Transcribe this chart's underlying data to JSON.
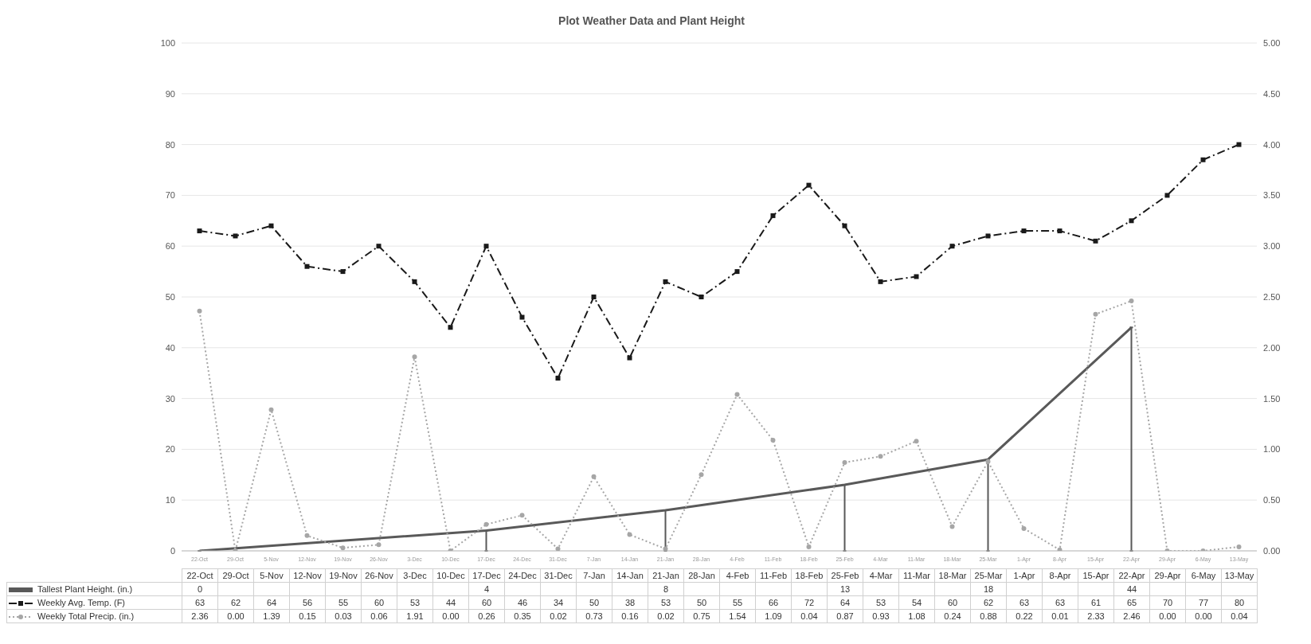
{
  "chart_data": {
    "type": "line",
    "title": "Plot Weather Data and Plant Height",
    "categories": [
      "22-Oct",
      "29-Oct",
      "5-Nov",
      "12-Nov",
      "19-Nov",
      "26-Nov",
      "3-Dec",
      "10-Dec",
      "17-Dec",
      "24-Dec",
      "31-Dec",
      "7-Jan",
      "14-Jan",
      "21-Jan",
      "28-Jan",
      "4-Feb",
      "11-Feb",
      "18-Feb",
      "25-Feb",
      "4-Mar",
      "11-Mar",
      "18-Mar",
      "25-Mar",
      "1-Apr",
      "8-Apr",
      "15-Apr",
      "22-Apr",
      "29-Apr",
      "6-May",
      "13-May"
    ],
    "series": [
      {
        "name": "Tallest Plant Height. (in.)",
        "color": "#595959",
        "line_style": "solid",
        "marker": "none",
        "values": [
          0,
          null,
          null,
          null,
          null,
          null,
          null,
          null,
          4,
          null,
          null,
          null,
          null,
          8,
          null,
          null,
          null,
          null,
          13,
          null,
          null,
          null,
          18,
          null,
          null,
          null,
          44,
          null,
          null,
          null
        ],
        "errors": [
          null,
          null,
          null,
          null,
          null,
          null,
          null,
          null,
          [
            0,
            4
          ],
          null,
          null,
          null,
          null,
          [
            0,
            8
          ],
          null,
          null,
          null,
          null,
          [
            0,
            13
          ],
          null,
          null,
          null,
          [
            0,
            18
          ],
          null,
          null,
          null,
          [
            0,
            44
          ],
          null,
          null,
          null
        ],
        "value_labels": [
          "0",
          null,
          null,
          null,
          null,
          null,
          null,
          null,
          "4",
          null,
          null,
          null,
          null,
          "8",
          null,
          null,
          null,
          null,
          "13",
          null,
          null,
          null,
          "18",
          null,
          null,
          null,
          "44",
          null,
          null,
          null
        ]
      },
      {
        "name": "Weekly Avg. Temp. (F)",
        "color": "#1a1a1a",
        "line_style": "dashed",
        "marker": "square",
        "values": [
          63,
          62,
          64,
          56,
          55,
          60,
          53,
          44,
          60,
          46,
          34,
          50,
          38,
          53,
          50,
          55,
          66,
          72,
          64,
          53,
          54,
          60,
          62,
          63,
          63,
          61,
          65,
          70,
          77,
          80
        ],
        "value_labels": [
          "63",
          "62",
          "64",
          "56",
          "55",
          "60",
          "53",
          "44",
          "60",
          "46",
          "34",
          "50",
          "38",
          "53",
          "50",
          "55",
          "66",
          "72",
          "64",
          "53",
          "54",
          "60",
          "62",
          "63",
          "63",
          "61",
          "65",
          "70",
          "77",
          "80"
        ]
      },
      {
        "name": "Weekly Total Precip. (in.)",
        "color": "#a6a6a6",
        "line_style": "dotted",
        "marker": "circle",
        "axis": "y2",
        "values": [
          2.36,
          0.0,
          1.39,
          0.15,
          0.03,
          0.06,
          1.91,
          0.0,
          0.26,
          0.35,
          0.02,
          0.73,
          0.16,
          0.02,
          0.75,
          1.54,
          1.09,
          0.04,
          0.87,
          0.93,
          1.08,
          0.24,
          0.88,
          0.22,
          0.01,
          2.33,
          2.46,
          0.0,
          0.0,
          0.04
        ],
        "value_labels": [
          "2.36",
          "0.00",
          "1.39",
          "0.15",
          "0.03",
          "0.06",
          "1.91",
          "0.00",
          "0.26",
          "0.35",
          "0.02",
          "0.73",
          "0.16",
          "0.02",
          "0.75",
          "1.54",
          "1.09",
          "0.04",
          "0.87",
          "0.93",
          "1.08",
          "0.24",
          "0.88",
          "0.22",
          "0.01",
          "2.33",
          "2.46",
          "0.00",
          "0.00",
          "0.04"
        ]
      }
    ],
    "ylim": [
      0,
      100
    ],
    "yticks": [
      0,
      10,
      20,
      30,
      40,
      50,
      60,
      70,
      80,
      90,
      100
    ],
    "y2lim": [
      0,
      5
    ],
    "y2ticks": [
      {
        "value": 0,
        "label": "0.00"
      },
      {
        "value": 0.5,
        "label": "0.50"
      },
      {
        "value": 1,
        "label": "1.00"
      },
      {
        "value": 1.5,
        "label": "1.50"
      },
      {
        "value": 2,
        "label": "2.00"
      },
      {
        "value": 2.5,
        "label": "2.50"
      },
      {
        "value": 3,
        "label": "3.00"
      },
      {
        "value": 3.5,
        "label": "3.50"
      },
      {
        "value": 4,
        "label": "4.00"
      },
      {
        "value": 4.5,
        "label": "4.50"
      },
      {
        "value": 5,
        "label": "5.00"
      }
    ],
    "grid": "y",
    "legend": "bottom"
  }
}
